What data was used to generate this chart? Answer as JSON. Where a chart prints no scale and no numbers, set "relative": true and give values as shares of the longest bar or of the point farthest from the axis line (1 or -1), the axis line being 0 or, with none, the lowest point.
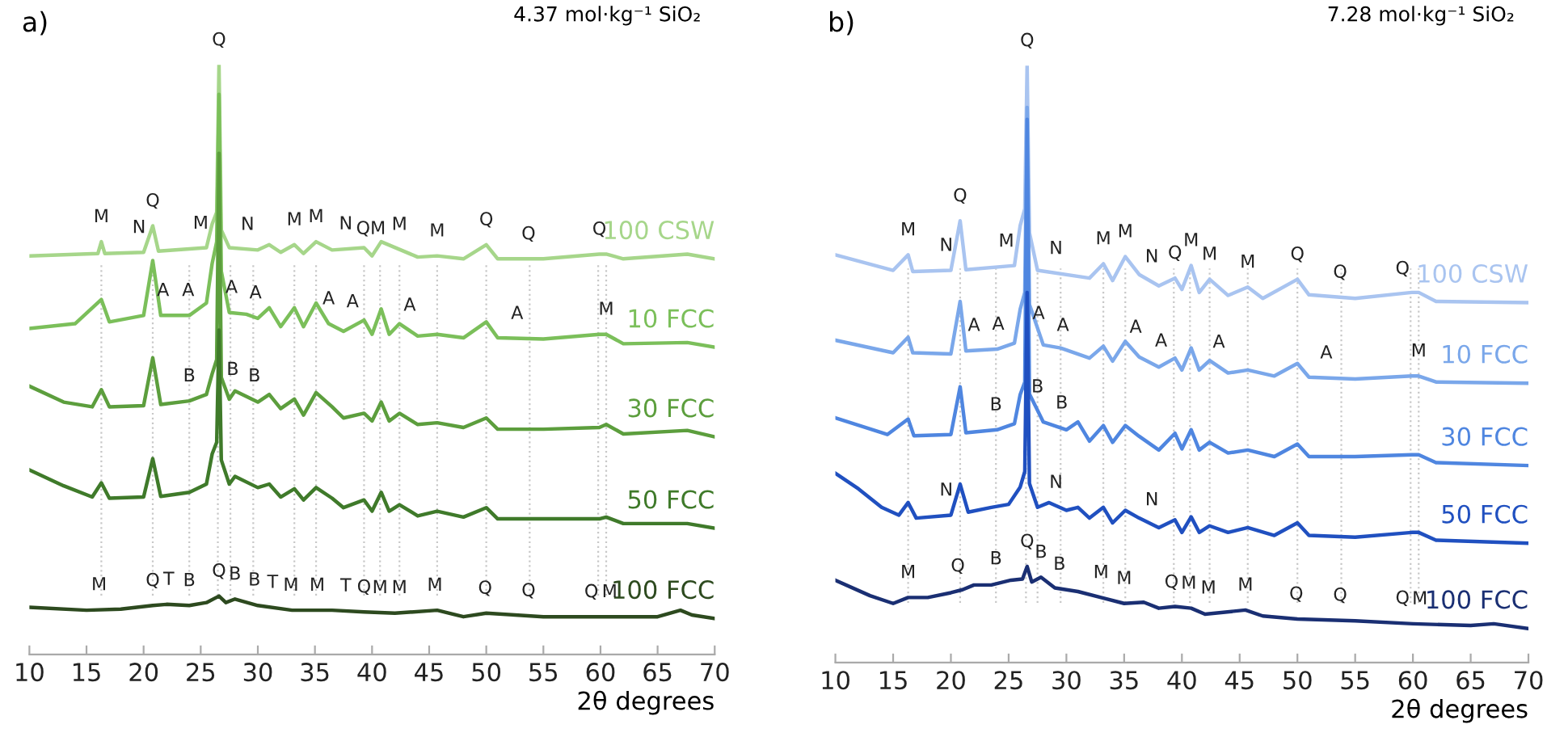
{
  "chart_data": [
    {
      "type": "line",
      "title": "a)",
      "subtitle": "4.37 mol·kg⁻¹ SiO₂",
      "xlabel": "2θ degrees",
      "relative": true,
      "xlim": [
        10,
        70
      ],
      "xticks": [
        10,
        15,
        20,
        25,
        30,
        35,
        40,
        45,
        50,
        55,
        60,
        65,
        70
      ],
      "tick_labels": "x",
      "grid": false,
      "legend": false,
      "marker": "none",
      "line_style": "solid",
      "series": [
        {
          "name": "100 CSW",
          "color": "#a6d68a",
          "x": [
            10,
            16,
            16.3,
            16.6,
            20,
            20.8,
            21.3,
            25.5,
            26.0,
            26.4,
            26.6,
            26.8,
            27.5,
            30,
            31,
            32,
            33.2,
            34,
            35.1,
            36.5,
            39.3,
            40,
            40.8,
            42.4,
            44,
            45.7,
            48,
            50.0,
            51,
            55,
            59.9,
            60.5,
            62,
            67.6,
            70
          ],
          "values": [
            0.676,
            0.68,
            0.7,
            0.68,
            0.682,
            0.727,
            0.684,
            0.69,
            0.73,
            0.75,
            1.0,
            0.72,
            0.69,
            0.686,
            0.695,
            0.682,
            0.695,
            0.68,
            0.7,
            0.686,
            0.69,
            0.676,
            0.7,
            0.687,
            0.674,
            0.676,
            0.671,
            0.695,
            0.671,
            0.671,
            0.679,
            0.679,
            0.671,
            0.679,
            0.671
          ]
        },
        {
          "name": "10 FCC",
          "color": "#7bbf5a",
          "x": [
            10,
            14,
            16.3,
            17,
            20,
            20.8,
            21.5,
            24,
            25.5,
            26.0,
            26.4,
            26.6,
            26.8,
            27.5,
            29,
            30,
            31,
            32,
            33.2,
            34,
            35.1,
            36.2,
            37.5,
            39.3,
            40,
            40.8,
            41.5,
            42.4,
            44,
            45.7,
            48,
            50.0,
            51,
            55,
            59.9,
            60.5,
            62,
            67.6,
            70
          ],
          "values": [
            0.553,
            0.561,
            0.602,
            0.564,
            0.575,
            0.668,
            0.575,
            0.575,
            0.596,
            0.663,
            0.7,
            0.95,
            0.65,
            0.58,
            0.577,
            0.57,
            0.588,
            0.556,
            0.588,
            0.556,
            0.596,
            0.561,
            0.548,
            0.567,
            0.543,
            0.586,
            0.543,
            0.561,
            0.54,
            0.543,
            0.537,
            0.564,
            0.537,
            0.535,
            0.543,
            0.543,
            0.527,
            0.529,
            0.521
          ]
        },
        {
          "name": "30 FCC",
          "color": "#5c9e3d",
          "x": [
            10,
            13,
            15.5,
            16.3,
            17,
            20,
            20.8,
            21.5,
            24,
            25.5,
            26.0,
            26.4,
            26.6,
            26.8,
            27.5,
            28,
            30,
            31,
            32,
            33.2,
            34,
            35.1,
            36.5,
            37.5,
            39.3,
            40,
            40.8,
            41.5,
            42.4,
            44,
            45.7,
            48,
            50.0,
            51,
            55,
            59.9,
            60.5,
            62,
            67.6,
            70
          ],
          "values": [
            0.455,
            0.428,
            0.42,
            0.449,
            0.42,
            0.422,
            0.503,
            0.424,
            0.43,
            0.441,
            0.476,
            0.5,
            0.85,
            0.47,
            0.433,
            0.447,
            0.428,
            0.441,
            0.417,
            0.433,
            0.406,
            0.444,
            0.42,
            0.401,
            0.409,
            0.396,
            0.428,
            0.396,
            0.409,
            0.39,
            0.393,
            0.385,
            0.401,
            0.382,
            0.382,
            0.385,
            0.39,
            0.374,
            0.38,
            0.369
          ]
        },
        {
          "name": "50 FCC",
          "color": "#3f7a2a",
          "x": [
            10,
            13,
            15.5,
            16.3,
            17,
            20,
            20.8,
            21.5,
            24,
            25.5,
            26.0,
            26.4,
            26.6,
            26.8,
            27.5,
            28,
            30,
            31,
            32,
            33.2,
            34,
            35.1,
            36.5,
            37.5,
            39.3,
            40,
            40.8,
            41.5,
            42.4,
            44,
            45.7,
            48,
            50.0,
            51,
            55,
            59.9,
            60.5,
            62,
            67.6,
            70
          ],
          "values": [
            0.313,
            0.286,
            0.267,
            0.291,
            0.265,
            0.267,
            0.332,
            0.268,
            0.275,
            0.289,
            0.34,
            0.36,
            0.55,
            0.33,
            0.289,
            0.302,
            0.283,
            0.289,
            0.267,
            0.281,
            0.262,
            0.283,
            0.265,
            0.249,
            0.262,
            0.243,
            0.275,
            0.243,
            0.254,
            0.235,
            0.243,
            0.233,
            0.249,
            0.23,
            0.23,
            0.23,
            0.233,
            0.222,
            0.222,
            0.214
          ]
        },
        {
          "name": "100 FCC",
          "color": "#2d4a1f",
          "x": [
            10,
            15,
            18,
            20.8,
            22,
            24,
            25.5,
            26.6,
            27.2,
            28,
            30,
            33,
            36.5,
            39.3,
            42,
            45.7,
            48,
            50.0,
            55,
            60,
            65,
            67,
            68,
            70
          ],
          "values": [
            0.08,
            0.075,
            0.077,
            0.083,
            0.085,
            0.083,
            0.088,
            0.099,
            0.088,
            0.094,
            0.083,
            0.075,
            0.075,
            0.072,
            0.07,
            0.075,
            0.064,
            0.07,
            0.064,
            0.064,
            0.064,
            0.075,
            0.067,
            0.061
          ]
        }
      ],
      "ref_lines": [
        {
          "axis": "x",
          "value": 16.3,
          "color": "#c8c8c8",
          "line_style": "dotted"
        },
        {
          "axis": "x",
          "value": 20.8,
          "color": "#c8c8c8",
          "line_style": "dotted"
        },
        {
          "axis": "x",
          "value": 24.0,
          "color": "#c8c8c8",
          "line_style": "dotted"
        },
        {
          "axis": "x",
          "value": 26.5,
          "color": "#c8c8c8",
          "line_style": "dotted"
        },
        {
          "axis": "x",
          "value": 27.6,
          "color": "#c8c8c8",
          "line_style": "dotted"
        },
        {
          "axis": "x",
          "value": 29.6,
          "color": "#c8c8c8",
          "line_style": "dotted"
        },
        {
          "axis": "x",
          "value": 33.2,
          "color": "#c8c8c8",
          "line_style": "dotted"
        },
        {
          "axis": "x",
          "value": 35.1,
          "color": "#c8c8c8",
          "line_style": "dotted"
        },
        {
          "axis": "x",
          "value": 39.3,
          "color": "#c8c8c8",
          "line_style": "dotted"
        },
        {
          "axis": "x",
          "value": 40.7,
          "color": "#c8c8c8",
          "line_style": "dotted"
        },
        {
          "axis": "x",
          "value": 42.4,
          "color": "#c8c8c8",
          "line_style": "dotted"
        },
        {
          "axis": "x",
          "value": 45.7,
          "color": "#c8c8c8",
          "line_style": "dotted"
        },
        {
          "axis": "x",
          "value": 50.0,
          "color": "#c8c8c8",
          "line_style": "dotted"
        },
        {
          "axis": "x",
          "value": 53.8,
          "color": "#c8c8c8",
          "line_style": "dotted"
        },
        {
          "axis": "x",
          "value": 59.8,
          "color": "#c8c8c8",
          "line_style": "dotted"
        },
        {
          "axis": "x",
          "value": 60.5,
          "color": "#c8c8c8",
          "line_style": "dotted"
        }
      ],
      "annotations": [
        {
          "text": "M",
          "x": 16.3,
          "y": 0.7
        },
        {
          "text": "N",
          "x": 19.6,
          "y": 0.682
        },
        {
          "text": "Q",
          "x": 20.8,
          "y": 0.727
        },
        {
          "text": "M",
          "x": 25.0,
          "y": 0.689
        },
        {
          "text": "Q",
          "x": 26.6,
          "y": 1.0
        },
        {
          "text": "N",
          "x": 29.1,
          "y": 0.687
        },
        {
          "text": "M",
          "x": 33.2,
          "y": 0.695
        },
        {
          "text": "M",
          "x": 35.1,
          "y": 0.7
        },
        {
          "text": "N",
          "x": 37.7,
          "y": 0.688
        },
        {
          "text": "QM",
          "x": 39.9,
          "y": 0.68
        },
        {
          "text": "M",
          "x": 42.4,
          "y": 0.687
        },
        {
          "text": "M",
          "x": 45.7,
          "y": 0.676
        },
        {
          "text": "Q",
          "x": 50.0,
          "y": 0.695
        },
        {
          "text": "Q",
          "x": 53.7,
          "y": 0.671
        },
        {
          "text": "Q",
          "x": 59.9,
          "y": 0.679
        },
        {
          "text": "A",
          "x": 21.7,
          "y": 0.575
        },
        {
          "text": "A",
          "x": 23.9,
          "y": 0.575
        },
        {
          "text": "A",
          "x": 27.7,
          "y": 0.58
        },
        {
          "text": "A",
          "x": 29.8,
          "y": 0.571
        },
        {
          "text": "A",
          "x": 36.2,
          "y": 0.561
        },
        {
          "text": "A",
          "x": 38.3,
          "y": 0.556
        },
        {
          "text": "A",
          "x": 43.3,
          "y": 0.55
        },
        {
          "text": "A",
          "x": 52.7,
          "y": 0.536
        },
        {
          "text": "M",
          "x": 60.5,
          "y": 0.543
        },
        {
          "text": "B",
          "x": 24.0,
          "y": 0.43
        },
        {
          "text": "B",
          "x": 27.8,
          "y": 0.441
        },
        {
          "text": "B",
          "x": 29.7,
          "y": 0.43
        },
        {
          "text": "M",
          "x": 16.1,
          "y": 0.076
        },
        {
          "text": "Q",
          "x": 20.8,
          "y": 0.083
        },
        {
          "text": "T",
          "x": 22.2,
          "y": 0.085
        },
        {
          "text": "B",
          "x": 24.0,
          "y": 0.083
        },
        {
          "text": "Q",
          "x": 26.6,
          "y": 0.099
        },
        {
          "text": "B",
          "x": 28.0,
          "y": 0.094
        },
        {
          "text": "B",
          "x": 29.7,
          "y": 0.084
        },
        {
          "text": "T",
          "x": 31.3,
          "y": 0.08
        },
        {
          "text": "M",
          "x": 32.9,
          "y": 0.075
        },
        {
          "text": "M",
          "x": 35.2,
          "y": 0.075
        },
        {
          "text": "T",
          "x": 37.7,
          "y": 0.074
        },
        {
          "text": "Q",
          "x": 39.3,
          "y": 0.072
        },
        {
          "text": "M",
          "x": 40.7,
          "y": 0.071
        },
        {
          "text": "M",
          "x": 42.4,
          "y": 0.071
        },
        {
          "text": "M",
          "x": 45.5,
          "y": 0.075
        },
        {
          "text": "Q",
          "x": 49.9,
          "y": 0.07
        },
        {
          "text": "Q",
          "x": 53.7,
          "y": 0.066
        },
        {
          "text": "Q",
          "x": 59.2,
          "y": 0.064
        },
        {
          "text": "M",
          "x": 60.8,
          "y": 0.064
        }
      ]
    },
    {
      "type": "line",
      "title": "b)",
      "subtitle": "7.28 mol·kg⁻¹ SiO₂",
      "xlabel": "2θ degrees",
      "relative": true,
      "xlim": [
        10,
        70
      ],
      "xticks": [
        10,
        15,
        20,
        25,
        30,
        35,
        40,
        45,
        50,
        55,
        60,
        65,
        70
      ],
      "tick_labels": "x",
      "grid": false,
      "legend": false,
      "marker": "none",
      "line_style": "solid",
      "series": [
        {
          "name": "100 CSW",
          "color": "#a9c4f0",
          "x": [
            10,
            15,
            16.3,
            16.7,
            20,
            20.8,
            21.3,
            25.5,
            26.0,
            26.4,
            26.6,
            26.8,
            27.5,
            32,
            33.2,
            34,
            35.1,
            36.3,
            38,
            39.4,
            40,
            40.8,
            41.5,
            42.4,
            44,
            45.7,
            47,
            50.0,
            51,
            55,
            59.9,
            60.5,
            62,
            70
          ],
          "values": [
            0.683,
            0.657,
            0.683,
            0.655,
            0.657,
            0.74,
            0.658,
            0.665,
            0.732,
            0.76,
            1.0,
            0.72,
            0.657,
            0.644,
            0.668,
            0.64,
            0.68,
            0.65,
            0.631,
            0.644,
            0.625,
            0.665,
            0.62,
            0.642,
            0.615,
            0.629,
            0.61,
            0.642,
            0.616,
            0.61,
            0.62,
            0.62,
            0.605,
            0.603
          ]
        },
        {
          "name": "10 FCC",
          "color": "#7aa7ea",
          "x": [
            10,
            15,
            16.3,
            16.7,
            20,
            20.8,
            21.3,
            24,
            25.5,
            26.0,
            26.4,
            26.6,
            26.8,
            28,
            29.5,
            32,
            33.2,
            34,
            35.1,
            36.3,
            38,
            39.4,
            40,
            40.8,
            41.5,
            42.4,
            44,
            45.7,
            48,
            50.0,
            51,
            55,
            59.9,
            60.5,
            62,
            70
          ],
          "values": [
            0.54,
            0.519,
            0.545,
            0.519,
            0.517,
            0.605,
            0.522,
            0.525,
            0.535,
            0.592,
            0.62,
            0.93,
            0.6,
            0.532,
            0.527,
            0.51,
            0.53,
            0.505,
            0.538,
            0.512,
            0.495,
            0.51,
            0.49,
            0.527,
            0.49,
            0.506,
            0.485,
            0.49,
            0.48,
            0.501,
            0.478,
            0.475,
            0.48,
            0.48,
            0.47,
            0.468
          ]
        },
        {
          "name": "30 FCC",
          "color": "#4f86e0",
          "x": [
            10,
            14.5,
            16.3,
            16.8,
            20,
            20.8,
            21.3,
            24,
            25.5,
            26.0,
            26.4,
            26.6,
            26.8,
            28,
            30,
            31,
            32,
            33.2,
            34,
            35.1,
            36.3,
            38,
            39.4,
            40,
            40.8,
            41.5,
            42.4,
            44,
            45.7,
            48,
            50.0,
            51,
            55,
            59.9,
            60.5,
            62,
            70
          ],
          "values": [
            0.41,
            0.382,
            0.408,
            0.38,
            0.382,
            0.462,
            0.385,
            0.39,
            0.4,
            0.449,
            0.47,
            0.91,
            0.45,
            0.403,
            0.39,
            0.403,
            0.371,
            0.397,
            0.369,
            0.397,
            0.379,
            0.356,
            0.384,
            0.358,
            0.39,
            0.356,
            0.369,
            0.351,
            0.356,
            0.345,
            0.366,
            0.345,
            0.345,
            0.348,
            0.348,
            0.335,
            0.33
          ]
        },
        {
          "name": "50 FCC",
          "color": "#2050c0",
          "x": [
            10,
            12,
            14,
            15.5,
            16.3,
            17,
            20,
            20.8,
            21.5,
            23.5,
            25,
            26.0,
            26.4,
            26.6,
            26.8,
            27.5,
            28.5,
            30,
            31,
            32,
            33.2,
            34,
            35.1,
            36.3,
            38,
            39.4,
            40,
            40.8,
            41.5,
            42.4,
            44,
            45.7,
            48,
            50.0,
            51,
            55,
            59.9,
            60.5,
            62,
            70
          ],
          "values": [
            0.317,
            0.291,
            0.26,
            0.247,
            0.268,
            0.242,
            0.247,
            0.299,
            0.252,
            0.26,
            0.265,
            0.294,
            0.32,
            0.62,
            0.3,
            0.26,
            0.268,
            0.255,
            0.26,
            0.242,
            0.26,
            0.234,
            0.255,
            0.242,
            0.226,
            0.239,
            0.218,
            0.244,
            0.218,
            0.229,
            0.218,
            0.226,
            0.213,
            0.234,
            0.213,
            0.21,
            0.218,
            0.218,
            0.205,
            0.2
          ]
        },
        {
          "name": "100 FCC",
          "color": "#1a2f73",
          "x": [
            10,
            13,
            15,
            16.3,
            18,
            20,
            21,
            22,
            23.5,
            25.2,
            26.2,
            26.6,
            27,
            27.8,
            29,
            31,
            33,
            35,
            36.7,
            38,
            39.4,
            40.8,
            42,
            45.5,
            47,
            50,
            55,
            60,
            65,
            67,
            70
          ],
          "values": [
            0.138,
            0.112,
            0.099,
            0.109,
            0.109,
            0.117,
            0.122,
            0.13,
            0.13,
            0.138,
            0.14,
            0.161,
            0.135,
            0.143,
            0.125,
            0.119,
            0.109,
            0.099,
            0.101,
            0.091,
            0.094,
            0.091,
            0.081,
            0.088,
            0.078,
            0.073,
            0.07,
            0.065,
            0.062,
            0.065,
            0.057
          ]
        }
      ],
      "ref_lines": [
        {
          "axis": "x",
          "value": 16.3,
          "color": "#c8c8c8",
          "line_style": "dotted"
        },
        {
          "axis": "x",
          "value": 20.8,
          "color": "#c8c8c8",
          "line_style": "dotted"
        },
        {
          "axis": "x",
          "value": 23.9,
          "color": "#c8c8c8",
          "line_style": "dotted"
        },
        {
          "axis": "x",
          "value": 26.5,
          "color": "#c8c8c8",
          "line_style": "dotted"
        },
        {
          "axis": "x",
          "value": 27.5,
          "color": "#c8c8c8",
          "line_style": "dotted"
        },
        {
          "axis": "x",
          "value": 29.5,
          "color": "#c8c8c8",
          "line_style": "dotted"
        },
        {
          "axis": "x",
          "value": 33.2,
          "color": "#c8c8c8",
          "line_style": "dotted"
        },
        {
          "axis": "x",
          "value": 35.1,
          "color": "#c8c8c8",
          "line_style": "dotted"
        },
        {
          "axis": "x",
          "value": 39.3,
          "color": "#c8c8c8",
          "line_style": "dotted"
        },
        {
          "axis": "x",
          "value": 40.7,
          "color": "#c8c8c8",
          "line_style": "dotted"
        },
        {
          "axis": "x",
          "value": 42.4,
          "color": "#c8c8c8",
          "line_style": "dotted"
        },
        {
          "axis": "x",
          "value": 45.7,
          "color": "#c8c8c8",
          "line_style": "dotted"
        },
        {
          "axis": "x",
          "value": 50.0,
          "color": "#c8c8c8",
          "line_style": "dotted"
        },
        {
          "axis": "x",
          "value": 53.8,
          "color": "#c8c8c8",
          "line_style": "dotted"
        },
        {
          "axis": "x",
          "value": 59.8,
          "color": "#c8c8c8",
          "line_style": "dotted"
        },
        {
          "axis": "x",
          "value": 60.5,
          "color": "#c8c8c8",
          "line_style": "dotted"
        }
      ],
      "annotations": [
        {
          "text": "M",
          "x": 16.3,
          "y": 0.683
        },
        {
          "text": "N",
          "x": 19.6,
          "y": 0.657
        },
        {
          "text": "Q",
          "x": 20.8,
          "y": 0.74
        },
        {
          "text": "M",
          "x": 24.8,
          "y": 0.664
        },
        {
          "text": "Q",
          "x": 26.6,
          "y": 1.0
        },
        {
          "text": "N",
          "x": 29.1,
          "y": 0.652
        },
        {
          "text": "M",
          "x": 33.2,
          "y": 0.668
        },
        {
          "text": "M",
          "x": 35.1,
          "y": 0.68
        },
        {
          "text": "N",
          "x": 37.4,
          "y": 0.638
        },
        {
          "text": "Q",
          "x": 39.4,
          "y": 0.644
        },
        {
          "text": "M",
          "x": 40.8,
          "y": 0.665
        },
        {
          "text": "M",
          "x": 42.4,
          "y": 0.642
        },
        {
          "text": "M",
          "x": 45.7,
          "y": 0.629
        },
        {
          "text": "Q",
          "x": 50.0,
          "y": 0.642
        },
        {
          "text": "Q",
          "x": 53.7,
          "y": 0.612
        },
        {
          "text": "Q",
          "x": 59.1,
          "y": 0.618
        },
        {
          "text": "A",
          "x": 22.0,
          "y": 0.523
        },
        {
          "text": "A",
          "x": 24.1,
          "y": 0.525
        },
        {
          "text": "A",
          "x": 27.6,
          "y": 0.543
        },
        {
          "text": "A",
          "x": 29.7,
          "y": 0.523
        },
        {
          "text": "A",
          "x": 36.0,
          "y": 0.52
        },
        {
          "text": "A",
          "x": 38.2,
          "y": 0.497
        },
        {
          "text": "A",
          "x": 43.2,
          "y": 0.495
        },
        {
          "text": "A",
          "x": 52.5,
          "y": 0.477
        },
        {
          "text": "M",
          "x": 60.5,
          "y": 0.48
        },
        {
          "text": "B",
          "x": 23.9,
          "y": 0.39
        },
        {
          "text": "B",
          "x": 27.5,
          "y": 0.42
        },
        {
          "text": "B",
          "x": 29.6,
          "y": 0.393
        },
        {
          "text": "N",
          "x": 19.6,
          "y": 0.247
        },
        {
          "text": "N",
          "x": 29.1,
          "y": 0.26
        },
        {
          "text": "N",
          "x": 37.4,
          "y": 0.231
        },
        {
          "text": "M",
          "x": 16.3,
          "y": 0.109
        },
        {
          "text": "Q",
          "x": 20.6,
          "y": 0.12
        },
        {
          "text": "B",
          "x": 23.9,
          "y": 0.132
        },
        {
          "text": "Q",
          "x": 26.6,
          "y": 0.161
        },
        {
          "text": "B",
          "x": 27.8,
          "y": 0.143
        },
        {
          "text": "B",
          "x": 29.4,
          "y": 0.123
        },
        {
          "text": "M",
          "x": 33.0,
          "y": 0.109
        },
        {
          "text": "M",
          "x": 35.0,
          "y": 0.099
        },
        {
          "text": "Q",
          "x": 39.1,
          "y": 0.093
        },
        {
          "text": "M",
          "x": 40.6,
          "y": 0.091
        },
        {
          "text": "M",
          "x": 42.3,
          "y": 0.083
        },
        {
          "text": "M",
          "x": 45.5,
          "y": 0.088
        },
        {
          "text": "Q",
          "x": 49.9,
          "y": 0.073
        },
        {
          "text": "Q",
          "x": 53.7,
          "y": 0.071
        },
        {
          "text": "Q",
          "x": 59.1,
          "y": 0.066
        },
        {
          "text": "M",
          "x": 60.6,
          "y": 0.065
        }
      ]
    }
  ]
}
